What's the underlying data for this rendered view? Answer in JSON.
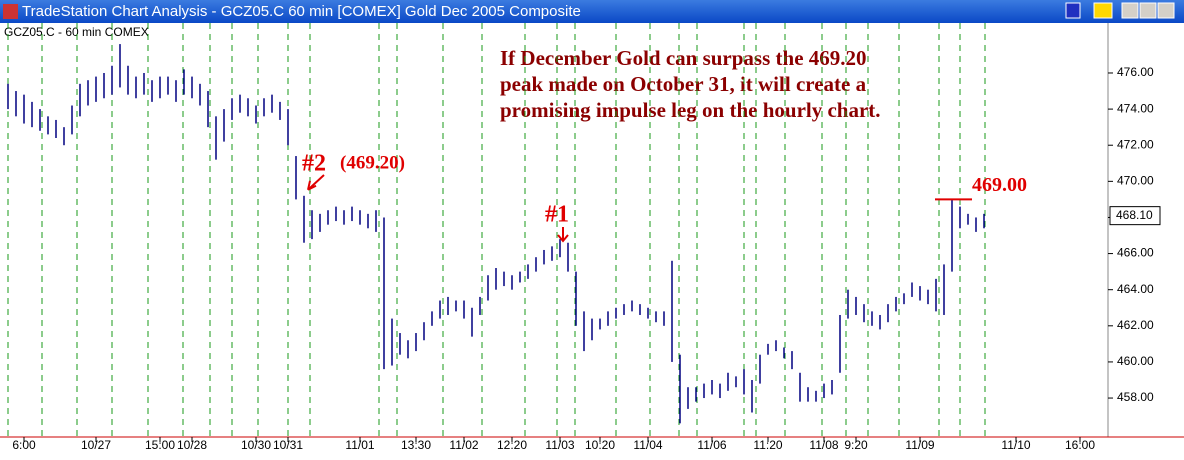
{
  "window": {
    "title": "TradeStation Chart Analysis - GCZ05.C  60 min  [COMEX] Gold Dec 2005 Composite"
  },
  "chart_data": {
    "type": "ohlc",
    "note": [
      "If December Gold can surpass the 469.20",
      "peak made on October 31, it will create a",
      "promising impulse leg on the hourly chart."
    ],
    "markers": [
      {
        "label": "#2",
        "value": 469.2,
        "value_label": "(469.20)"
      },
      {
        "label": "#1"
      }
    ],
    "target": {
      "value": 469,
      "label": "469.00"
    },
    "last_price": {
      "value": 468.1,
      "label": "468.10"
    },
    "categories": [
      null,
      null,
      "6:00",
      null,
      null,
      null,
      null,
      null,
      null,
      null,
      null,
      "10/27",
      null,
      null,
      null,
      null,
      null,
      null,
      null,
      "15:00",
      null,
      null,
      null,
      "10/28",
      null,
      null,
      null,
      null,
      null,
      null,
      null,
      "10/30",
      null,
      null,
      null,
      "10/31",
      null,
      null,
      null,
      null,
      null,
      null,
      null,
      null,
      "11/01",
      null,
      null,
      null,
      null,
      null,
      null,
      "13:30",
      null,
      null,
      null,
      null,
      null,
      "11/02",
      null,
      null,
      null,
      null,
      null,
      "12:20",
      null,
      null,
      null,
      null,
      null,
      "11/03",
      null,
      null,
      null,
      null,
      "10:20",
      null,
      null,
      null,
      null,
      null,
      "11/04",
      null,
      null,
      null,
      null,
      null,
      null,
      null,
      "11/06",
      null,
      null,
      null,
      null,
      null,
      null,
      "11:20",
      null,
      null,
      null,
      null,
      null,
      null,
      "11/08",
      null,
      null,
      null,
      "9:20",
      null,
      null,
      null,
      null,
      null,
      null,
      null,
      "11/09",
      null,
      null,
      null,
      null,
      null,
      null,
      null,
      null,
      null,
      null,
      null,
      "11/10",
      null,
      null,
      null,
      null,
      null,
      null,
      null,
      "16:00",
      null,
      null
    ],
    "series": [
      {
        "name": "GCZ05.C - 60 min   COMEX",
        "color": "#000080",
        "high": [
          475.4,
          475.0,
          474.8,
          474.4,
          474.0,
          473.6,
          473.4,
          473.0,
          474.2,
          475.4,
          475.6,
          475.8,
          476.0,
          476.4,
          477.6,
          476.4,
          475.8,
          476.0,
          475.6,
          475.8,
          475.8,
          475.6,
          476.2,
          475.8,
          475.4,
          475.0,
          473.6,
          474.0,
          474.6,
          474.8,
          474.6,
          474.2,
          474.6,
          474.8,
          474.4,
          474.0,
          471.4,
          469.2,
          468.4,
          468.2,
          468.4,
          468.6,
          468.4,
          468.6,
          468.4,
          468.2,
          468.4,
          468.0,
          462.4,
          461.6,
          461.2,
          461.6,
          462.2,
          462.8,
          463.4,
          463.6,
          463.4,
          463.4,
          463.0,
          463.6,
          464.8,
          465.2,
          465.0,
          464.8,
          465.0,
          465.4,
          465.8,
          466.2,
          466.4,
          466.8,
          466.6,
          465.0,
          462.8,
          462.4,
          462.4,
          462.8,
          463.0,
          463.2,
          463.4,
          463.2,
          463.0,
          462.8,
          462.8,
          465.6,
          460.4,
          458.6,
          458.6,
          458.8,
          459.0,
          458.8,
          459.4,
          459.2,
          459.6,
          459.0,
          460.4,
          461.0,
          461.2,
          460.8,
          460.6,
          459.4,
          458.6,
          458.4,
          458.8,
          459.0,
          462.6,
          464.0,
          463.6,
          463.2,
          462.8,
          462.6,
          463.2,
          463.6,
          463.8,
          464.4,
          464.2,
          464.0,
          464.6,
          465.4,
          469.0,
          468.6,
          468.2,
          468.0,
          468.2,
          null,
          null,
          null,
          null,
          null,
          null,
          null,
          null,
          null,
          null,
          null,
          null,
          null,
          null
        ],
        "low": [
          474.0,
          473.6,
          473.2,
          473.0,
          472.8,
          472.6,
          472.4,
          472.0,
          472.6,
          473.6,
          474.2,
          474.4,
          474.6,
          474.8,
          475.2,
          474.8,
          474.6,
          474.8,
          474.4,
          474.6,
          474.8,
          474.4,
          474.8,
          474.6,
          474.2,
          473.0,
          471.2,
          472.2,
          473.4,
          473.8,
          473.6,
          473.2,
          473.6,
          473.8,
          473.4,
          472.0,
          469.0,
          466.6,
          466.8,
          467.2,
          467.6,
          467.8,
          467.6,
          467.8,
          467.6,
          467.4,
          467.2,
          459.6,
          459.8,
          460.4,
          460.2,
          460.6,
          461.2,
          462.0,
          462.4,
          462.6,
          462.8,
          462.4,
          461.4,
          462.6,
          463.4,
          464.0,
          464.2,
          464.0,
          464.4,
          464.6,
          465.0,
          465.4,
          465.6,
          465.8,
          465.0,
          462.0,
          460.6,
          461.2,
          461.8,
          462.0,
          462.4,
          462.6,
          462.8,
          462.6,
          462.4,
          462.2,
          462.0,
          460.0,
          456.6,
          457.4,
          457.8,
          458.0,
          458.2,
          458.0,
          458.4,
          458.6,
          458.2,
          457.2,
          458.8,
          460.4,
          460.6,
          460.2,
          459.6,
          457.8,
          457.8,
          457.8,
          458.0,
          458.2,
          459.4,
          462.4,
          462.6,
          462.2,
          462.0,
          461.8,
          462.2,
          462.8,
          463.2,
          463.6,
          463.4,
          463.2,
          462.8,
          462.6,
          465.0,
          467.4,
          467.6,
          467.2,
          467.4,
          null,
          null,
          null,
          null,
          null,
          null,
          null,
          null,
          null,
          null,
          null,
          null,
          null,
          null
        ]
      }
    ],
    "ylim": [
      456.12,
      478.38
    ],
    "yticks": [
      {
        "value": 458,
        "label": "458.00"
      },
      {
        "value": 460,
        "label": "460.00"
      },
      {
        "value": 462,
        "label": "462.00"
      },
      {
        "value": 464,
        "label": "464.00"
      },
      {
        "value": 466,
        "label": "466.00"
      },
      {
        "value": 468,
        "label": "468.00"
      },
      {
        "value": 470,
        "label": "470.00"
      },
      {
        "value": 472,
        "label": "472.00"
      },
      {
        "value": 474,
        "label": "474.00"
      },
      {
        "value": 476,
        "label": "476.00"
      }
    ]
  }
}
